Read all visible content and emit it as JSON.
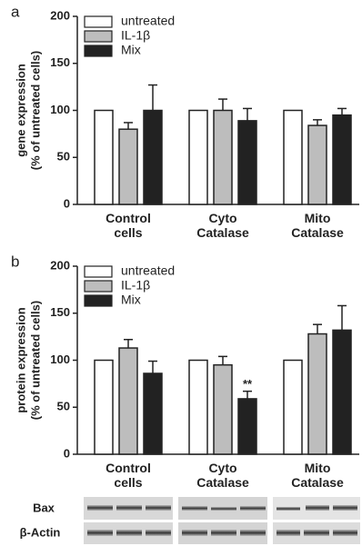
{
  "chart_data": [
    {
      "type": "bar",
      "label": "a",
      "ylabel": [
        "gene expression",
        "(% of untreated cells)"
      ],
      "categories": [
        "Control\ncells",
        "Cyto\nCatalase",
        "Mito\nCatalase"
      ],
      "series": [
        {
          "name": "untreated",
          "color": "#ffffff",
          "values": [
            100,
            100,
            100
          ]
        },
        {
          "name": "IL-1β",
          "color": "#bdbdbd",
          "values": [
            80,
            100,
            84
          ],
          "errors": [
            7,
            12,
            6
          ]
        },
        {
          "name": "Mix",
          "color": "#222222",
          "values": [
            100,
            89,
            95
          ],
          "errors": [
            27,
            13,
            7
          ]
        }
      ],
      "ylim": [
        0,
        200
      ],
      "yticks": [
        0,
        50,
        100,
        150,
        200
      ],
      "legend": "top-left"
    },
    {
      "type": "bar",
      "label": "b",
      "ylabel": [
        "protein expression",
        "(% of untreated cells)"
      ],
      "categories": [
        "Control\ncells",
        "Cyto\nCatalase",
        "Mito\nCatalase"
      ],
      "series": [
        {
          "name": "untreated",
          "color": "#ffffff",
          "values": [
            100,
            100,
            100
          ]
        },
        {
          "name": "IL-1β",
          "color": "#bdbdbd",
          "values": [
            113,
            95,
            128
          ],
          "errors": [
            9,
            9,
            10
          ]
        },
        {
          "name": "Mix",
          "color": "#222222",
          "values": [
            86,
            59,
            132
          ],
          "errors": [
            13,
            8,
            26
          ]
        }
      ],
      "annotations": [
        {
          "text": "**",
          "category": "Cyto\nCatalase",
          "series": "Mix"
        }
      ],
      "ylim": [
        0,
        200
      ],
      "yticks": [
        0,
        50,
        100,
        150,
        200
      ],
      "legend": "top-left"
    }
  ],
  "blot": {
    "labels": [
      "Bax",
      "β-Actin"
    ]
  }
}
